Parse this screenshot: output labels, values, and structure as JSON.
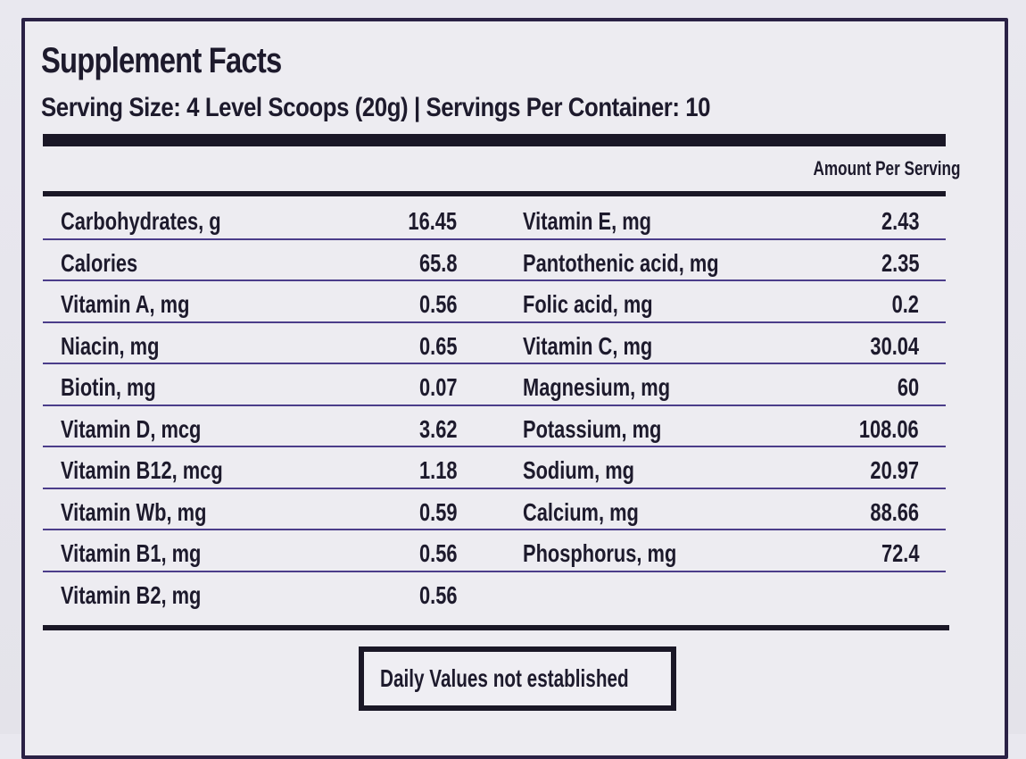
{
  "label": {
    "title": "Supplement Facts",
    "serving_line": "Serving Size: 4 Level Scoops (20g) | Servings Per Container: 10",
    "amount_header": "Amount Per Serving",
    "footer_note": "Daily Values not established"
  },
  "rows": [
    {
      "left_name": "Carbohydrates, g",
      "left_value": "16.45",
      "right_name": "Vitamin E, mg",
      "right_value": "2.43"
    },
    {
      "left_name": "Calories",
      "left_value": "65.8",
      "right_name": "Pantothenic acid, mg",
      "right_value": "2.35"
    },
    {
      "left_name": "Vitamin A, mg",
      "left_value": "0.56",
      "right_name": "Folic acid, mg",
      "right_value": "0.2"
    },
    {
      "left_name": "Niacin, mg",
      "left_value": "0.65",
      "right_name": "Vitamin C, mg",
      "right_value": "30.04"
    },
    {
      "left_name": "Biotin, mg",
      "left_value": "0.07",
      "right_name": "Magnesium, mg",
      "right_value": "60"
    },
    {
      "left_name": "Vitamin D, mcg",
      "left_value": "3.62",
      "right_name": "Potassium, mg",
      "right_value": "108.06"
    },
    {
      "left_name": "Vitamin B12, mcg",
      "left_value": "1.18",
      "right_name": "Sodium, mg",
      "right_value": "20.97"
    },
    {
      "left_name": "Vitamin Wb, mg",
      "left_value": "0.59",
      "right_name": "Calcium, mg",
      "right_value": "88.66"
    },
    {
      "left_name": "Vitamin B1, mg",
      "left_value": "0.56",
      "right_name": "Phosphorus, mg",
      "right_value": "72.4"
    },
    {
      "left_name": "Vitamin B2, mg",
      "left_value": "0.56",
      "right_name": "",
      "right_value": ""
    }
  ]
}
